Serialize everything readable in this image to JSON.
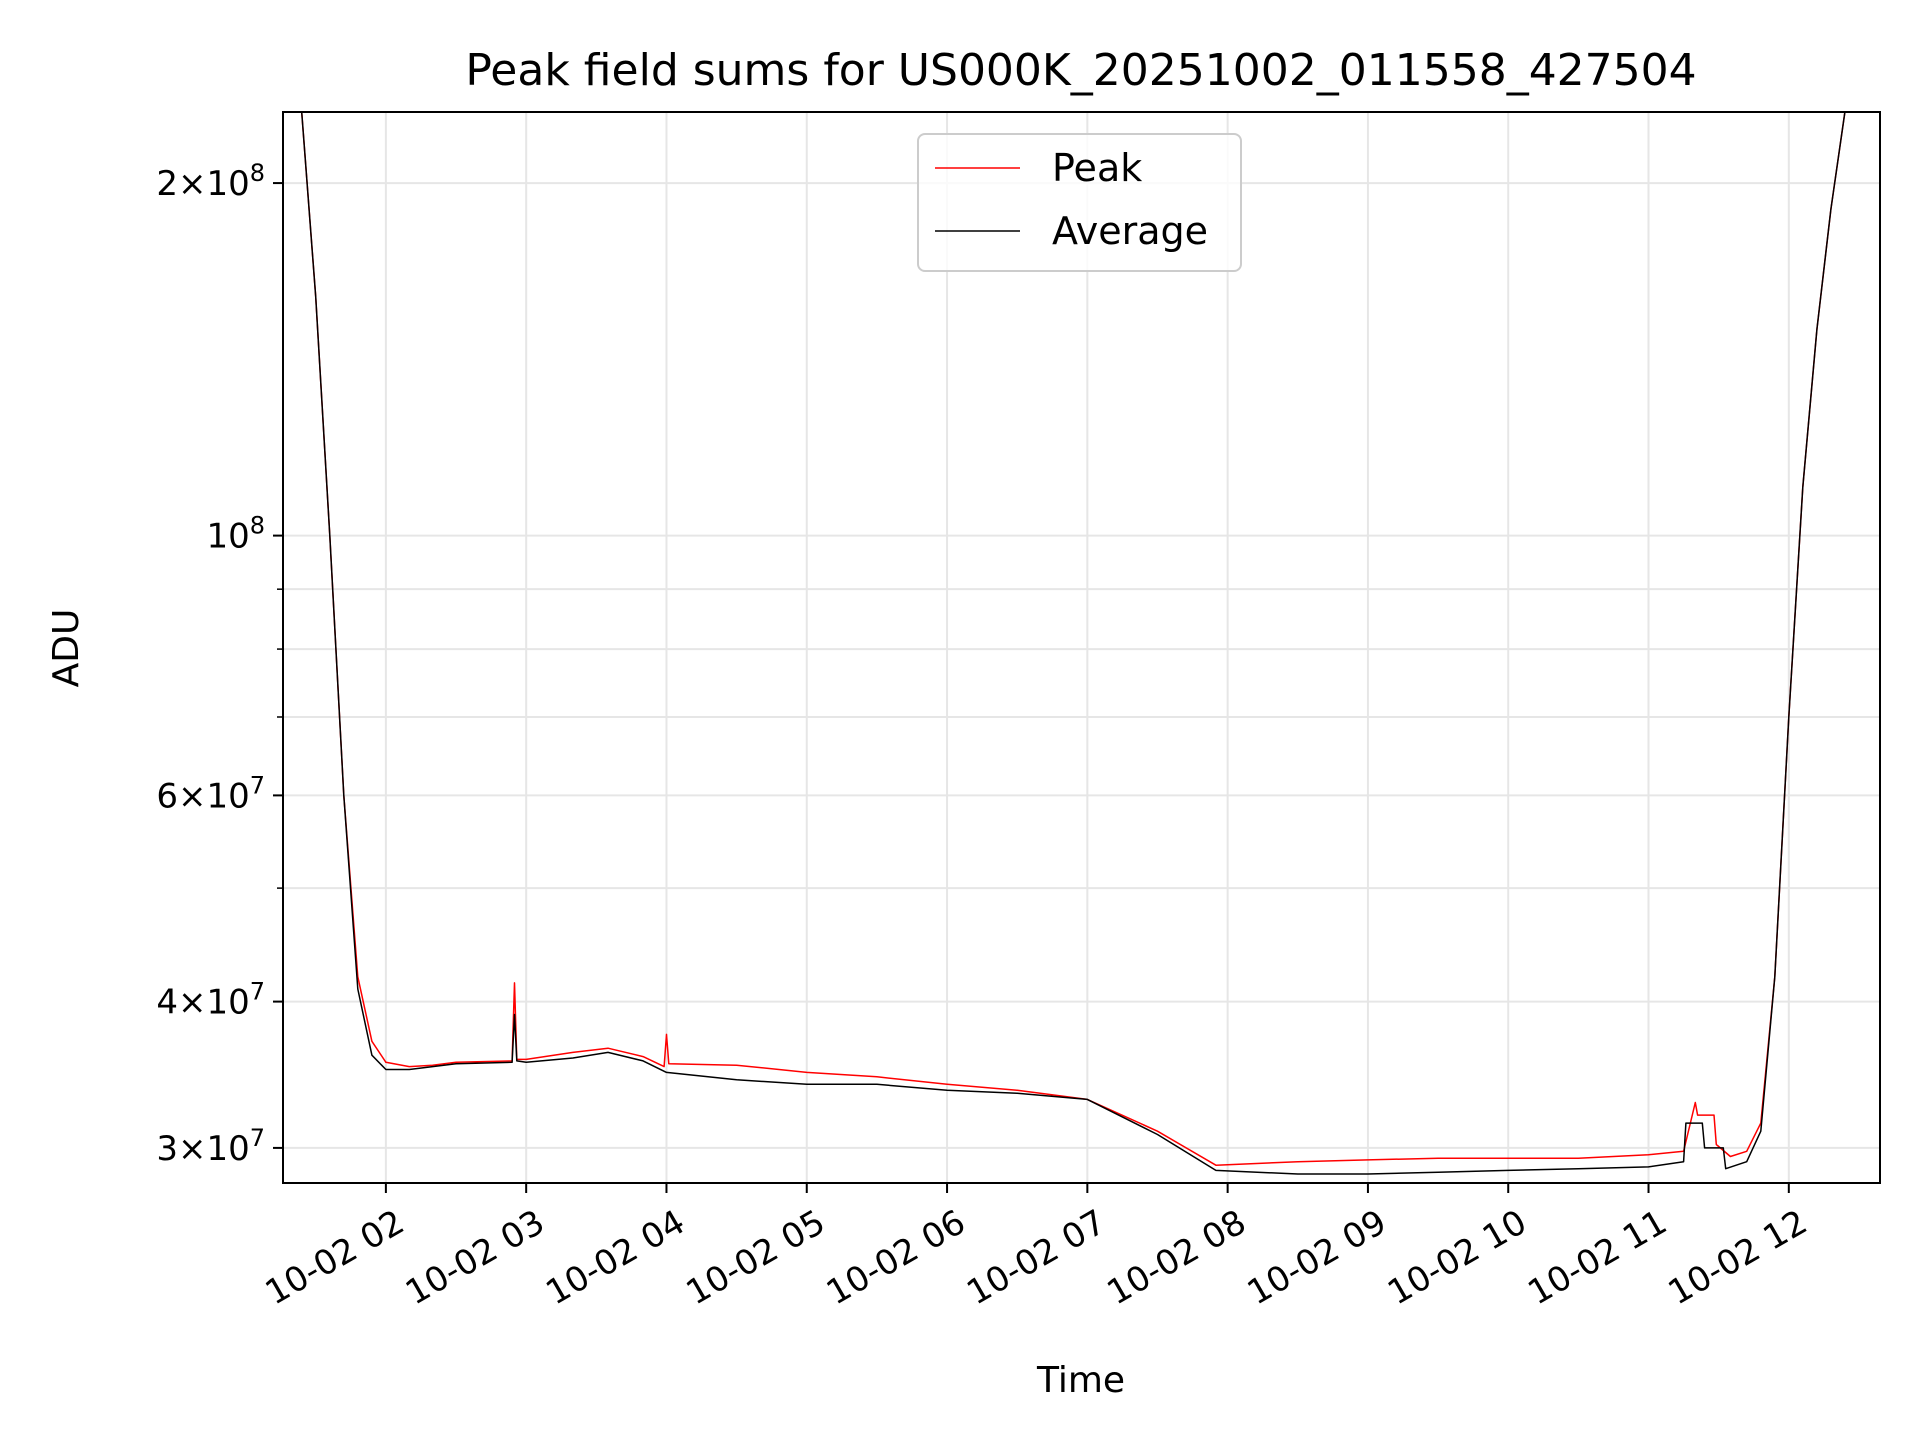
{
  "chart_data": {
    "type": "line",
    "title": "Peak field sums for US000K_20251002_011558_427504",
    "xlabel": "Time",
    "ylabel": "ADU",
    "y_scale": "log",
    "xlim": [
      "2025-10-02 01:16",
      "2025-10-02 12:39"
    ],
    "ylim": [
      28000000,
      230000000
    ],
    "x_ticks": [
      "10-02 02",
      "10-02 03",
      "10-02 04",
      "10-02 05",
      "10-02 06",
      "10-02 07",
      "10-02 08",
      "10-02 09",
      "10-02 10",
      "10-02 11",
      "10-02 12"
    ],
    "y_ticks": [
      {
        "value": 30000000,
        "mantissa": "3",
        "exponent": "7"
      },
      {
        "value": 40000000,
        "mantissa": "4",
        "exponent": "7"
      },
      {
        "value": 60000000,
        "mantissa": "6",
        "exponent": "7"
      },
      {
        "value": 100000000,
        "mantissa": "",
        "exponent": "8"
      },
      {
        "value": 200000000,
        "mantissa": "2",
        "exponent": "8"
      }
    ],
    "y_minor_ticks": [
      50000000,
      70000000,
      80000000,
      90000000
    ],
    "grid": true,
    "legend_position": "top-center",
    "series": [
      {
        "name": "Peak",
        "color": "#ff0000",
        "x": [
          "2025-10-02 01:24",
          "2025-10-02 01:30",
          "2025-10-02 01:36",
          "2025-10-02 01:42",
          "2025-10-02 01:48",
          "2025-10-02 01:54",
          "2025-10-02 02:00",
          "2025-10-02 02:10",
          "2025-10-02 02:20",
          "2025-10-02 02:30",
          "2025-10-02 02:54",
          "2025-10-02 02:55",
          "2025-10-02 02:56",
          "2025-10-02 03:00",
          "2025-10-02 03:20",
          "2025-10-02 03:35",
          "2025-10-02 03:50",
          "2025-10-02 03:59",
          "2025-10-02 04:00",
          "2025-10-02 04:01",
          "2025-10-02 04:30",
          "2025-10-02 05:00",
          "2025-10-02 05:30",
          "2025-10-02 06:00",
          "2025-10-02 06:30",
          "2025-10-02 07:00",
          "2025-10-02 07:30",
          "2025-10-02 07:55",
          "2025-10-02 08:30",
          "2025-10-02 09:00",
          "2025-10-02 09:30",
          "2025-10-02 10:00",
          "2025-10-02 10:30",
          "2025-10-02 11:00",
          "2025-10-02 11:15",
          "2025-10-02 11:20",
          "2025-10-02 11:21",
          "2025-10-02 11:28",
          "2025-10-02 11:29",
          "2025-10-02 11:35",
          "2025-10-02 11:42",
          "2025-10-02 11:48",
          "2025-10-02 11:54",
          "2025-10-02 12:00",
          "2025-10-02 12:06",
          "2025-10-02 12:12",
          "2025-10-02 12:18",
          "2025-10-02 12:24",
          "2025-10-02 12:30"
        ],
        "y": [
          230000000,
          160000000,
          100000000,
          60000000,
          42000000,
          37000000,
          35500000,
          35200000,
          35300000,
          35500000,
          35600000,
          41500000,
          35700000,
          35700000,
          36200000,
          36500000,
          35900000,
          35200000,
          37500000,
          35400000,
          35300000,
          34800000,
          34500000,
          34000000,
          33600000,
          33000000,
          31000000,
          29000000,
          29200000,
          29300000,
          29400000,
          29400000,
          29400000,
          29600000,
          29800000,
          32800000,
          32000000,
          32000000,
          30200000,
          29500000,
          29800000,
          31500000,
          42000000,
          70000000,
          110000000,
          150000000,
          190000000,
          230000000,
          230000000
        ]
      },
      {
        "name": "Average",
        "color": "#000000",
        "x": [
          "2025-10-02 01:24",
          "2025-10-02 01:30",
          "2025-10-02 01:36",
          "2025-10-02 01:42",
          "2025-10-02 01:48",
          "2025-10-02 01:54",
          "2025-10-02 02:00",
          "2025-10-02 02:10",
          "2025-10-02 02:20",
          "2025-10-02 02:30",
          "2025-10-02 02:54",
          "2025-10-02 02:55",
          "2025-10-02 02:56",
          "2025-10-02 03:00",
          "2025-10-02 03:20",
          "2025-10-02 03:35",
          "2025-10-02 03:50",
          "2025-10-02 04:00",
          "2025-10-02 04:30",
          "2025-10-02 05:00",
          "2025-10-02 05:30",
          "2025-10-02 06:00",
          "2025-10-02 06:30",
          "2025-10-02 07:00",
          "2025-10-02 07:30",
          "2025-10-02 07:55",
          "2025-10-02 08:30",
          "2025-10-02 09:00",
          "2025-10-02 09:30",
          "2025-10-02 10:00",
          "2025-10-02 10:30",
          "2025-10-02 11:00",
          "2025-10-02 11:15",
          "2025-10-02 11:16",
          "2025-10-02 11:23",
          "2025-10-02 11:24",
          "2025-10-02 11:32",
          "2025-10-02 11:33",
          "2025-10-02 11:42",
          "2025-10-02 11:48",
          "2025-10-02 11:54",
          "2025-10-02 12:00",
          "2025-10-02 12:06",
          "2025-10-02 12:12",
          "2025-10-02 12:18",
          "2025-10-02 12:24",
          "2025-10-02 12:30"
        ],
        "y": [
          230000000,
          160000000,
          100000000,
          60000000,
          41000000,
          36000000,
          35000000,
          35000000,
          35200000,
          35400000,
          35500000,
          39000000,
          35600000,
          35500000,
          35800000,
          36200000,
          35600000,
          34800000,
          34300000,
          34000000,
          34000000,
          33600000,
          33400000,
          33000000,
          30800000,
          28700000,
          28500000,
          28500000,
          28600000,
          28700000,
          28800000,
          28900000,
          29200000,
          31500000,
          31500000,
          30000000,
          30000000,
          28800000,
          29200000,
          31000000,
          42000000,
          70000000,
          110000000,
          150000000,
          190000000,
          230000000,
          230000000
        ]
      }
    ]
  }
}
